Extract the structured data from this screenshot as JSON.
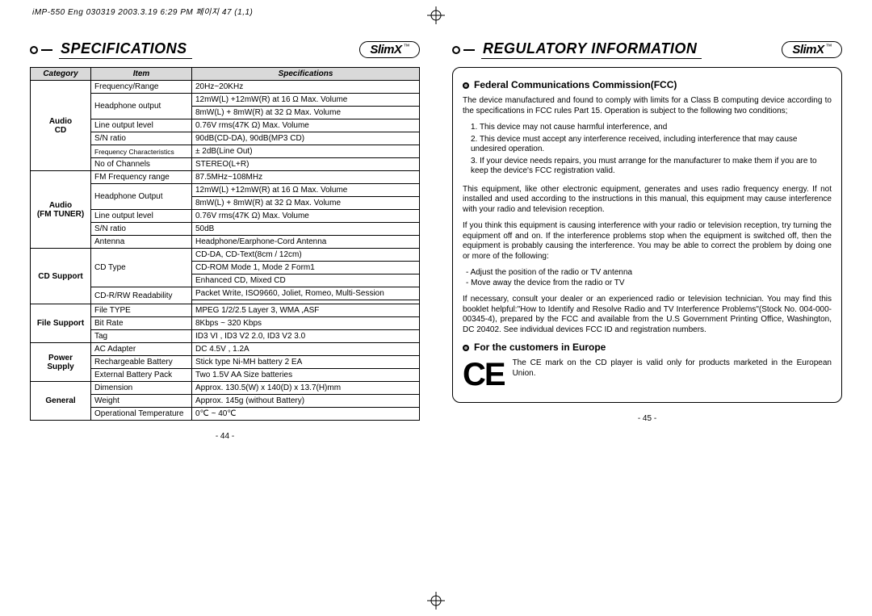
{
  "meta": {
    "print_header": "iMP-550 Eng 030319  2003.3.19 6:29 PM  페이지 47 (1,1)"
  },
  "brand": {
    "name": "SlimX",
    "tm": "™"
  },
  "left": {
    "title": "SPECIFICATIONS",
    "headers": [
      "Category",
      "Item",
      "Specifications"
    ],
    "groups": [
      {
        "category": "Audio\nCD",
        "rows": [
          {
            "item": "Frequency/Range",
            "spec": "20Hz~20KHz"
          },
          {
            "item": "Headphone output",
            "spec": "12mW(L) +12mW(R) at 16 Ω Max. Volume",
            "rowspan_item": 2
          },
          {
            "spec": "8mW(L) + 8mW(R) at 32 Ω Max. Volume"
          },
          {
            "item": "Line output level",
            "spec": "0.76V rms(47K Ω) Max. Volume"
          },
          {
            "item": "S/N ratio",
            "spec": "90dB(CD-DA), 90dB(MP3 CD)"
          },
          {
            "item": "Frequency Characteristics",
            "item_class": "small",
            "spec": "± 2dB(Line Out)"
          },
          {
            "item": "No of Channels",
            "spec": "STEREO(L+R)"
          }
        ]
      },
      {
        "category": "Audio\n(FM TUNER)",
        "rows": [
          {
            "item": "FM Frequency range",
            "spec": "87.5MHz~108MHz"
          },
          {
            "item": "Headphone Output",
            "spec": "12mW(L) +12mW(R) at 16 Ω Max. Volume",
            "rowspan_item": 2
          },
          {
            "spec": "8mW(L) + 8mW(R) at 32 Ω Max. Volume"
          },
          {
            "item": "Line output level",
            "spec": "0.76V rms(47K Ω) Max. Volume"
          },
          {
            "item": "S/N ratio",
            "spec": "50dB"
          },
          {
            "item": "Antenna",
            "spec": "Headphone/Earphone-Cord Antenna"
          }
        ]
      },
      {
        "category": "CD Support",
        "rows": [
          {
            "item": "CD Type",
            "spec": "CD-DA, CD-Text(8cm / 12cm)",
            "rowspan_item": 3
          },
          {
            "spec": "CD-ROM Mode 1, Mode 2 Form1"
          },
          {
            "spec": "Enhanced CD, Mixed CD"
          },
          {
            "item": "CD-R/RW Readability",
            "spec": "Packet Write, ISO9660, Joliet, Romeo, Multi-Session",
            "rowspan_item": 2
          },
          {
            "spec": ""
          }
        ]
      },
      {
        "category": "File Support",
        "rows": [
          {
            "item": "File TYPE",
            "spec": "MPEG 1/2/2.5 Layer 3, WMA ,ASF"
          },
          {
            "item": "Bit Rate",
            "spec": "8Kbps ~ 320 Kbps"
          },
          {
            "item": "Tag",
            "spec": "ID3 VI , ID3 V2 2.0, ID3 V2 3.0"
          }
        ]
      },
      {
        "category": "Power Supply",
        "rows": [
          {
            "item": "AC Adapter",
            "spec": "DC 4.5V , 1.2A"
          },
          {
            "item": "Rechargeable Battery",
            "spec": "Stick type Ni-MH battery 2 EA"
          },
          {
            "item": "External Battery Pack",
            "spec": "Two 1.5V AA Size batteries"
          }
        ]
      },
      {
        "category": "General",
        "rows": [
          {
            "item": "Dimension",
            "spec": "Approx. 130.5(W) x 140(D) x 13.7(H)mm"
          },
          {
            "item": "Weight",
            "spec": "Approx. 145g (without Battery)"
          },
          {
            "item": "Operational Temperature",
            "spec": "0℃ ~ 40℃"
          }
        ]
      }
    ],
    "pagenum": "- 44 -"
  },
  "right": {
    "title": "REGULATORY INFORMATION",
    "sec1_title": "Federal Communications Commission(FCC)",
    "sec1_intro": "The device manufactured and found to comply with limits for a Class B computing device according to the specifications in FCC rules Part 15.  Operation is subject to the following two conditions;",
    "sec1_list": [
      "1. This device may not cause harmful interference, and",
      "2. This device must accept any interference received, including interference that may cause undesired operation.",
      "3. If your device needs repairs, you must arrange for the manufacturer to make them if you are to keep the device's FCC registration valid."
    ],
    "sec1_p2": "This equipment, like other electronic equipment, generates and uses radio frequency energy. If not installed and used according to the instructions in this manual, this equipment may cause interference with your radio and television reception.",
    "sec1_p3": "If you think this equipment is causing interference with your radio or television reception, try turning the equipment off and on. If the interference problems stop when the equipment is switched off, then the equipment is probably causing the interference. You may be able to correct the problem by doing one or more of the following:",
    "sec1_bullets": [
      "Adjust the position of the radio or TV antenna",
      "Move away the device from the radio or TV"
    ],
    "sec1_p4": "If necessary, consult your dealer or an experienced radio or television technician. You may find this booklet helpful:\"How to Identify and Resolve Radio and TV Interference Problems\"(Stock No. 004-000-00345-4), prepared by the FCC and available from the U.S Government Printing Office, Washington, DC 20402. See individual devices FCC ID and registration numbers.",
    "sec2_title": "For the customers in Europe",
    "sec2_text": "The CE mark on the CD player is valid only for products marketed in the European Union.",
    "ce": "CE",
    "pagenum": "- 45 -"
  }
}
